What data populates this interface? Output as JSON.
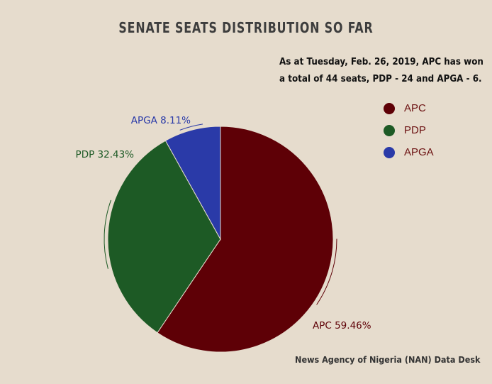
{
  "chart_data": {
    "type": "pie",
    "title": "SENATE SEATS DISTRIBUTION SO FAR",
    "subtitle_lines": [
      "As at Tuesday, Feb. 26, 2019, APC has won",
      "a total of 44 seats, PDP - 24 and APGA - 6."
    ],
    "source": "News Agency of Nigeria (NAN) Data Desk",
    "legend_position": "top-right",
    "slices": [
      {
        "name": "APC",
        "value": 44,
        "percent": 59.46,
        "label": "APC 59.46%",
        "color": "#5e0006"
      },
      {
        "name": "PDP",
        "value": 24,
        "percent": 32.43,
        "label": "PDP 32.43%",
        "color": "#1d5a25"
      },
      {
        "name": "APGA",
        "value": 6,
        "percent": 8.11,
        "label": "APGA 8.11%",
        "color": "#2a3aa8"
      }
    ]
  }
}
